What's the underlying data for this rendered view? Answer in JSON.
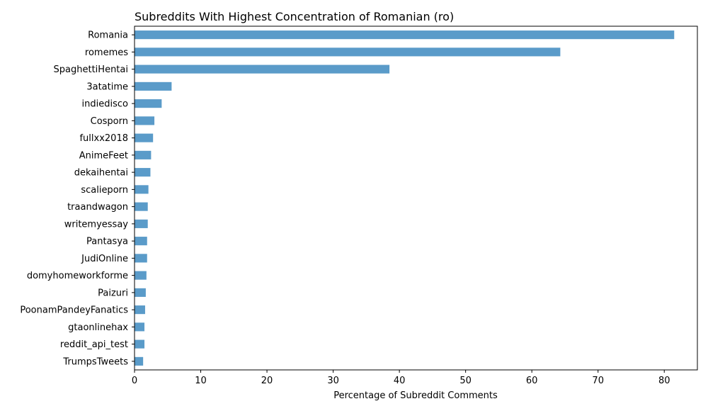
{
  "chart_data": {
    "type": "bar",
    "orientation": "horizontal",
    "title": "Subreddits With Highest Concentration of Romanian (ro)",
    "xlabel": "Percentage of Subreddit Comments",
    "ylabel": "",
    "xlim": [
      0,
      85
    ],
    "xticks": [
      0,
      10,
      20,
      30,
      40,
      50,
      60,
      70,
      80
    ],
    "grid": false,
    "bar_color": "#5a9bc9",
    "categories": [
      "Romania",
      "romemes",
      "SpaghettiHentai",
      "3atatime",
      "indiedisco",
      "Cosporn",
      "fullxx2018",
      "AnimeFeet",
      "dekaihentai",
      "scalieporn",
      "traandwagon",
      "writemyessay",
      "Pantasya",
      "JudiOnline",
      "domyhomeworkforme",
      "Paizuri",
      "PoonamPandeyFanatics",
      "gtaonlinehax",
      "reddit_api_test",
      "TrumpsTweets"
    ],
    "values": [
      81.5,
      64.3,
      38.5,
      5.6,
      4.1,
      3.0,
      2.8,
      2.5,
      2.4,
      2.1,
      2.0,
      2.0,
      1.9,
      1.9,
      1.8,
      1.7,
      1.6,
      1.5,
      1.5,
      1.3
    ]
  }
}
